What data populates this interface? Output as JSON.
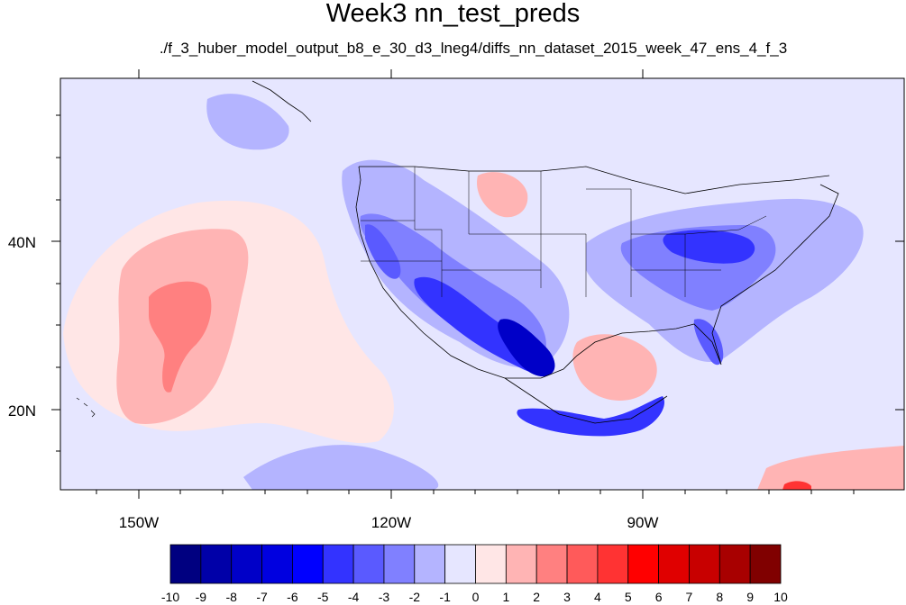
{
  "title": "Week3 nn_test_preds",
  "subtitle": "./f_3_huber_model_output_b8_e_30_d3_lneg4/diffs_nn_dataset_2015_week_47_ens_4_f_3",
  "map": {
    "lon_labels": [
      "150W",
      "120W",
      "90W"
    ],
    "lat_labels": [
      "40N",
      "20N"
    ],
    "background_color": "#e6e6ff"
  },
  "colorbar": {
    "labels": [
      "-10",
      "-9",
      "-8",
      "-7",
      "-6",
      "-5",
      "-4",
      "-3",
      "-2",
      "-1",
      "0",
      "1",
      "2",
      "3",
      "4",
      "5",
      "6",
      "7",
      "8",
      "9",
      "10"
    ],
    "colors": [
      "#000080",
      "#0000a8",
      "#0000c8",
      "#0000e0",
      "#0000ff",
      "#3333ff",
      "#5a5aff",
      "#8080ff",
      "#b4b4ff",
      "#e6e6ff",
      "#ffe6e6",
      "#ffb4b4",
      "#ff8080",
      "#ff5a5a",
      "#ff3333",
      "#ff0000",
      "#e00000",
      "#c80000",
      "#a80000",
      "#800000"
    ]
  }
}
